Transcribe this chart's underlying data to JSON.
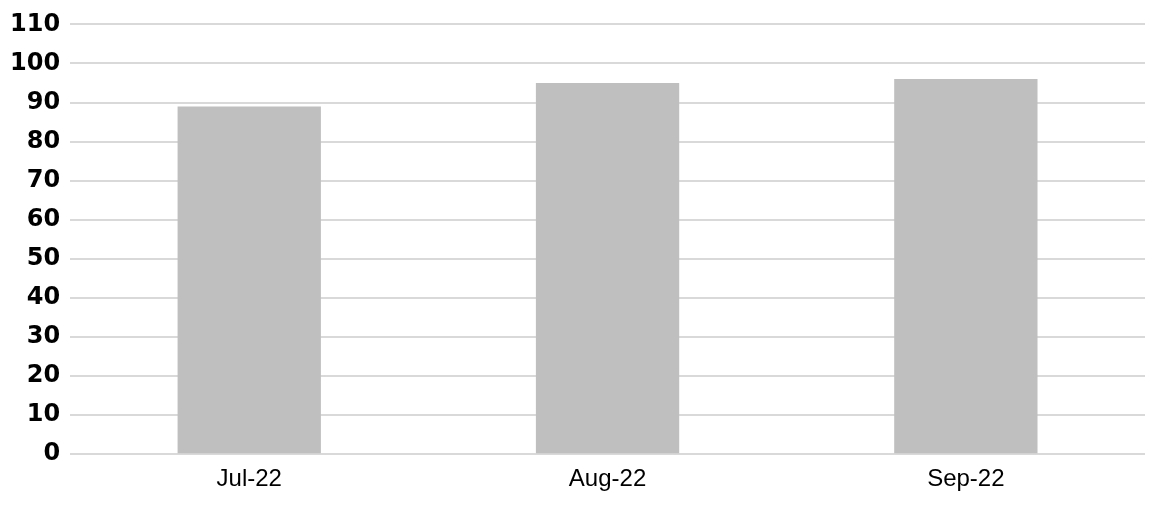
{
  "chart_data": {
    "type": "bar",
    "categories": [
      "Jul-22",
      "Aug-22",
      "Sep-22"
    ],
    "values": [
      89,
      95,
      96
    ],
    "color": "#bfbfbf",
    "ylim": [
      0,
      110
    ],
    "yticks": [
      0,
      10,
      20,
      30,
      40,
      50,
      60,
      70,
      80,
      90,
      100,
      110
    ],
    "grid": "y",
    "legend": false
  }
}
